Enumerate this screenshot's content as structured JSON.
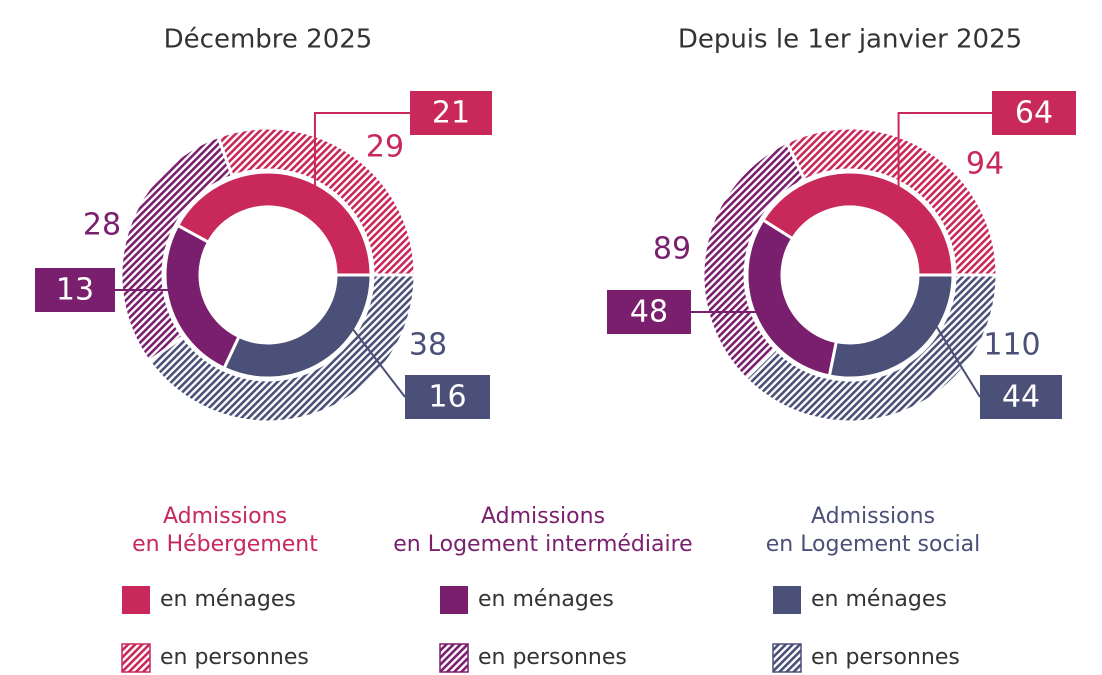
{
  "chart_data": [
    {
      "type": "pie",
      "title": "Décembre 2025",
      "series": [
        {
          "name": "en ménages",
          "values": [
            21,
            13,
            16
          ]
        },
        {
          "name": "en personnes",
          "values": [
            29,
            28,
            38
          ]
        }
      ]
    },
    {
      "type": "pie",
      "title": "Depuis le 1er janvier 2025",
      "series": [
        {
          "name": "en ménages",
          "values": [
            64,
            48,
            44
          ]
        },
        {
          "name": "en personnes",
          "values": [
            94,
            89,
            110
          ]
        }
      ]
    }
  ],
  "legend": {
    "categories": [
      [
        "Admissions",
        "en Hébergement"
      ],
      [
        "Admissions",
        "en Logement intermédiaire"
      ],
      [
        "Admissions",
        "en Logement social"
      ]
    ],
    "colors": [
      "#c8285a",
      "#7a1f6e",
      "#4b5078"
    ]
  }
}
